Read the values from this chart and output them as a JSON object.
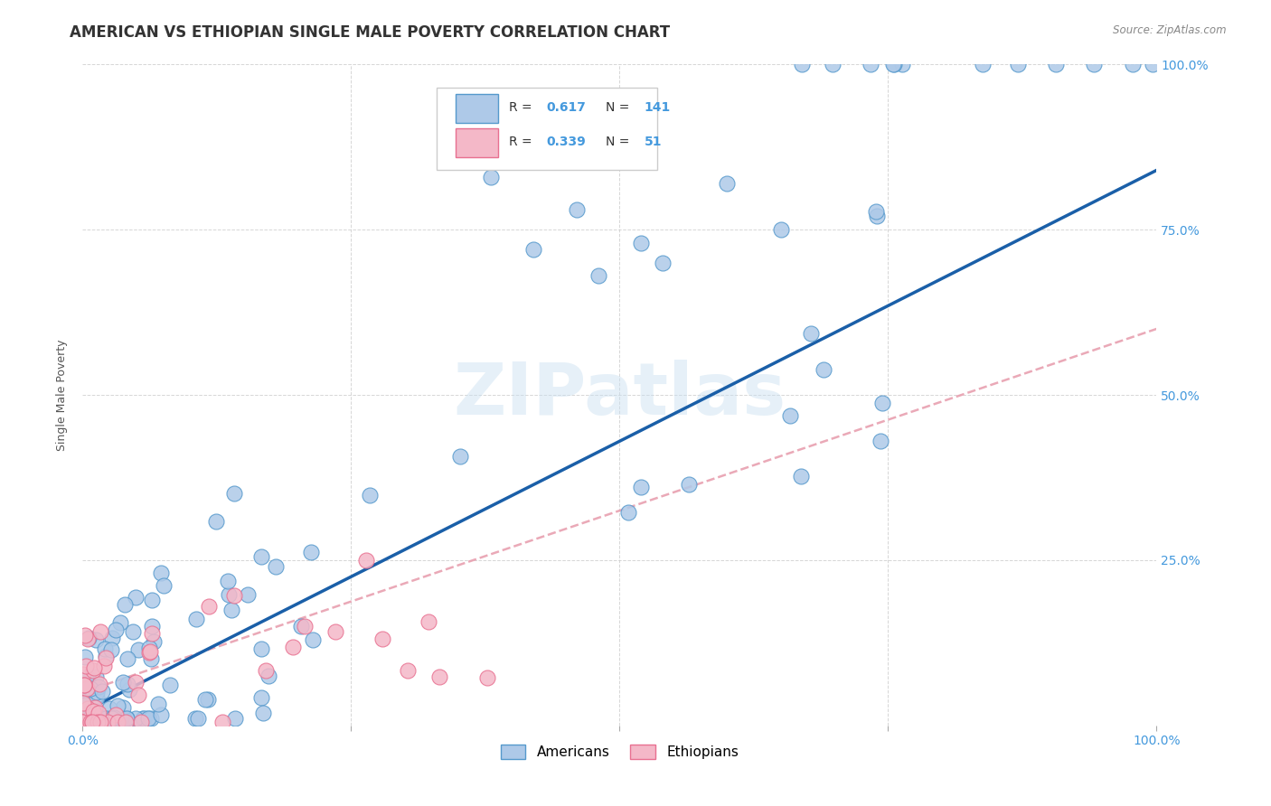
{
  "title": "AMERICAN VS ETHIOPIAN SINGLE MALE POVERTY CORRELATION CHART",
  "source": "Source: ZipAtlas.com",
  "ylabel": "Single Male Poverty",
  "watermark": "ZIPatlas",
  "xlim": [
    0,
    1
  ],
  "ylim": [
    0,
    1
  ],
  "american_R": 0.617,
  "american_N": 141,
  "ethiopian_R": 0.339,
  "ethiopian_N": 51,
  "american_color": "#aec9e8",
  "american_edge": "#5599cc",
  "ethiopian_color": "#f4b8c8",
  "ethiopian_edge": "#e87090",
  "regression_american_color": "#1a5fa8",
  "regression_ethiopian_color": "#e8a0b0",
  "background_color": "#ffffff",
  "grid_color": "#cccccc",
  "title_fontsize": 12,
  "tick_fontsize": 10,
  "right_tick_color": "#4499dd",
  "bottom_tick_color": "#4499dd"
}
